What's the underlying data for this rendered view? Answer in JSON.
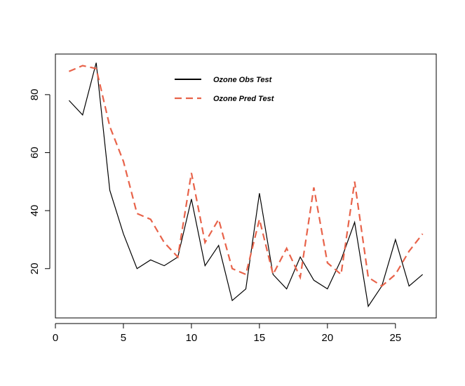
{
  "chart_data": {
    "type": "line",
    "title": "",
    "xlabel": "",
    "ylabel": "",
    "xlim": [
      0,
      28
    ],
    "ylim": [
      3,
      94
    ],
    "x_ticks": [
      0,
      5,
      10,
      15,
      20,
      25
    ],
    "y_ticks": [
      20,
      40,
      60,
      80
    ],
    "grid": false,
    "legend_position": "top",
    "x": [
      1,
      2,
      3,
      4,
      5,
      6,
      7,
      8,
      9,
      10,
      11,
      12,
      13,
      14,
      15,
      16,
      17,
      18,
      19,
      20,
      21,
      22,
      23,
      24,
      25,
      26,
      27
    ],
    "series": [
      {
        "name": "Ozone Obs Test",
        "color": "#000000",
        "style": "solid",
        "values": [
          78,
          73,
          91,
          47,
          32,
          20,
          23,
          21,
          24,
          44,
          21,
          28,
          9,
          13,
          46,
          18,
          13,
          24,
          16,
          13,
          23,
          36,
          7,
          14,
          30,
          14,
          18
        ]
      },
      {
        "name": "Ozone Pred Test",
        "color": "#e8634a",
        "style": "dashed",
        "values": [
          88,
          90,
          89,
          69,
          57,
          39,
          37,
          29,
          24,
          53,
          29,
          37,
          20,
          18,
          37,
          18,
          27,
          17,
          48,
          22,
          18,
          50,
          17,
          14,
          18,
          26,
          32
        ]
      }
    ]
  }
}
